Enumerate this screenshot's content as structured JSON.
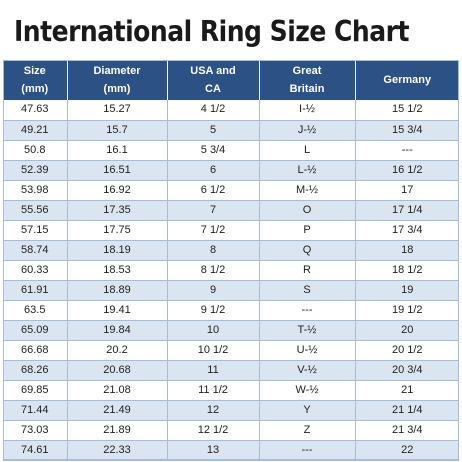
{
  "title": "International Ring Size Chart",
  "colors": {
    "header_background": "#2b5185",
    "header_text": "#ffffff",
    "row_alt_background": "#dbe5f1",
    "row_background": "#ffffff",
    "grid_line": "#a9bcd6"
  },
  "table": {
    "headers": [
      [
        "Size",
        "(mm)"
      ],
      [
        "Diameter",
        "(mm)"
      ],
      [
        "USA and",
        "CA"
      ],
      [
        "Great",
        "Britain"
      ],
      [
        "Germany"
      ]
    ],
    "rows": [
      [
        "47.63",
        "15.27",
        "4 1/2",
        "I-½",
        "15 1/2"
      ],
      [
        "49.21",
        "15.7",
        "5",
        "J-½",
        "15 3/4"
      ],
      [
        "50.8",
        "16.1",
        "5 3/4",
        "L",
        "---"
      ],
      [
        "52.39",
        "16.51",
        "6",
        "L-½",
        "16 1/2"
      ],
      [
        "53.98",
        "16.92",
        "6 1/2",
        "M-½",
        "17"
      ],
      [
        "55.56",
        "17.35",
        "7",
        "O",
        "17 1/4"
      ],
      [
        "57.15",
        "17.75",
        "7 1/2",
        "P",
        "17 3/4"
      ],
      [
        "58.74",
        "18.19",
        "8",
        "Q",
        "18"
      ],
      [
        "60.33",
        "18.53",
        "8 1/2",
        "R",
        "18 1/2"
      ],
      [
        "61.91",
        "18.89",
        "9",
        "S",
        "19"
      ],
      [
        "63.5",
        "19.41",
        "9 1/2",
        "---",
        "19 1/2"
      ],
      [
        "65.09",
        "19.84",
        "10",
        "T-½",
        "20"
      ],
      [
        "66.68",
        "20.2",
        "10 1/2",
        "U-½",
        "20 1/2"
      ],
      [
        "68.26",
        "20.68",
        "11",
        "V-½",
        "20 3/4"
      ],
      [
        "69.85",
        "21.08",
        "11 1/2",
        "W-½",
        "21"
      ],
      [
        "71.44",
        "21.49",
        "12",
        "Y",
        "21 1/4"
      ],
      [
        "73.03",
        "21.89",
        "12 1/2",
        "Z",
        "21 3/4"
      ],
      [
        "74.61",
        "22.33",
        "13",
        "---",
        "22"
      ]
    ]
  }
}
